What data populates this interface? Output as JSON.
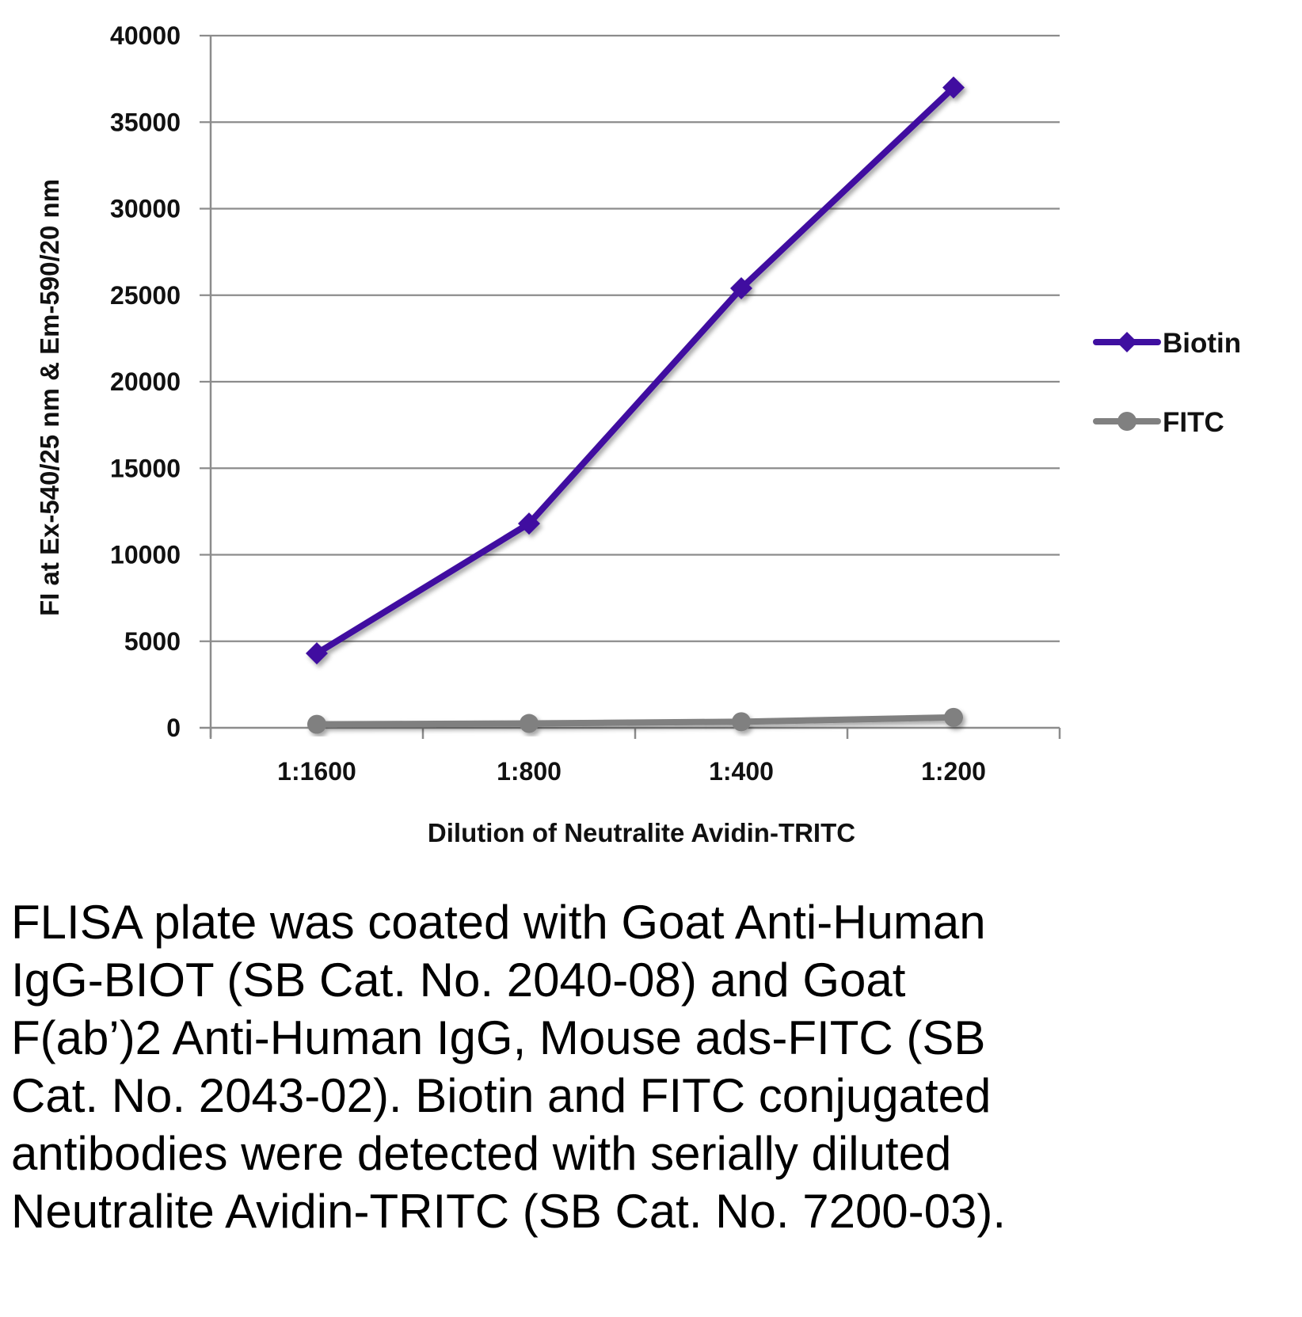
{
  "chart_data": {
    "type": "line",
    "title": "",
    "xlabel": "Dilution of Neutralite Avidin-TRITC",
    "ylabel": "FI at Ex-540/25 nm & Em-590/20 nm",
    "categories": [
      "1:1600",
      "1:800",
      "1:400",
      "1:200"
    ],
    "ylim": [
      0,
      40000
    ],
    "yticks": [
      0,
      5000,
      10000,
      15000,
      20000,
      25000,
      30000,
      35000,
      40000
    ],
    "grid": true,
    "legend_position": "right",
    "series": [
      {
        "name": "Biotin",
        "values": [
          4300,
          11800,
          25400,
          37000
        ],
        "color": "#3f0fa0",
        "marker": "diamond"
      },
      {
        "name": "FITC",
        "values": [
          200,
          250,
          350,
          600
        ],
        "color": "#808080",
        "marker": "circle"
      }
    ]
  },
  "caption": "FLISA plate was coated with Goat Anti-Human IgG-BIOT (SB Cat. No. 2040-08) and Goat F(ab’)2 Anti-Human IgG, Mouse ads-FITC (SB Cat. No. 2043-02).  Biotin and FITC conjugated antibodies were detected with serially diluted Neutralite Avidin-TRITC (SB Cat. No. 7200-03)."
}
